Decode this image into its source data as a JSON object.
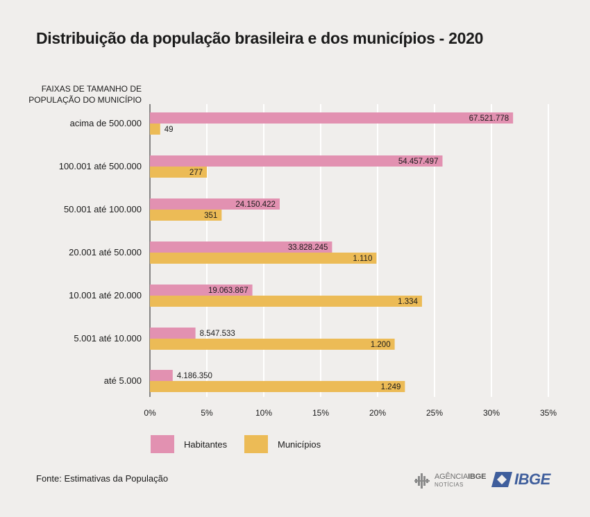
{
  "title": "Distribuição da população brasileira e dos municípios - 2020",
  "category_header": [
    "FAIXAS DE TAMANHO DE",
    "POPULAÇÃO DO MUNICÍPIO"
  ],
  "colors": {
    "habitantes": "#e291b1",
    "municipios": "#ecbb56",
    "background": "#f0eeec",
    "grid": "#ffffff",
    "ibge_blue": "#3f5e9c"
  },
  "chart_data": {
    "type": "bar",
    "orientation": "horizontal",
    "categories": [
      "acima de 500.000",
      "100.001 até 500.000",
      "50.001 até 100.000",
      "20.001 até 50.000",
      "10.001 até 20.000",
      "5.001 até 10.000",
      "até 5.000"
    ],
    "series": [
      {
        "name": "Habitantes",
        "percent": [
          31.9,
          25.7,
          11.4,
          16.0,
          9.0,
          4.0,
          2.0
        ],
        "labels": [
          "67.521.778",
          "54.457.497",
          "24.150.422",
          "33.828.245",
          "19.063.867",
          "8.547.533",
          "4.186.350"
        ],
        "label_inside": [
          true,
          true,
          true,
          true,
          true,
          false,
          false
        ]
      },
      {
        "name": "Municípios",
        "percent": [
          0.9,
          5.0,
          6.3,
          19.9,
          23.9,
          21.5,
          22.4
        ],
        "labels": [
          "49",
          "277",
          "351",
          "1.110",
          "1.334",
          "1.200",
          "1.249"
        ],
        "label_inside": [
          false,
          true,
          true,
          true,
          true,
          true,
          true
        ]
      }
    ],
    "xlim": [
      0,
      35
    ],
    "xticks": [
      "0%",
      "5%",
      "10%",
      "15%",
      "20%",
      "25%",
      "30%",
      "35%"
    ],
    "grid": true,
    "legend_position": "bottom-left"
  },
  "legend": {
    "habitantes": "Habitantes",
    "municipios": "Municípios"
  },
  "source": "Fonte: Estimativas da População",
  "logos": {
    "agencia_prefix": "AGÊNCIA",
    "agencia_bold": "IBGE",
    "agencia_sub": "NOTÍCIAS",
    "ibge": "IBGE"
  }
}
